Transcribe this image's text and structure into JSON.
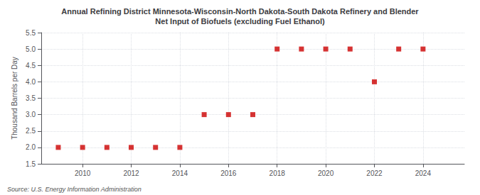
{
  "chart_data": {
    "type": "scatter",
    "title": "Annual Refining District Minnesota-Wisconsin-North Dakota-South Dakota Refinery and Blender\nNet Input of Biofuels (excluding Fuel Ethanol)",
    "ylabel": "Thousand Barrels per Day",
    "source": "Source: U.S. Energy Information Administration",
    "x": [
      2009,
      2010,
      2011,
      2012,
      2013,
      2014,
      2015,
      2016,
      2017,
      2018,
      2019,
      2020,
      2021,
      2022,
      2023,
      2024
    ],
    "values": [
      2.0,
      2.0,
      2.0,
      2.0,
      2.0,
      2.0,
      3.0,
      3.0,
      3.0,
      5.0,
      5.0,
      5.0,
      5.0,
      4.0,
      5.0,
      5.0
    ],
    "color": "#cc0000",
    "marker": "square",
    "xlim": [
      2008.3,
      2025.7
    ],
    "xticks": [
      2010,
      2012,
      2014,
      2016,
      2018,
      2020,
      2022,
      2024
    ],
    "ylim": [
      1.5,
      5.5
    ],
    "yticks": [
      1.5,
      {
        "value": 2,
        "label": "2.0"
      },
      2.5,
      {
        "value": 3,
        "label": "3.0"
      },
      3.5,
      {
        "value": 4,
        "label": "4.0"
      },
      4.5,
      {
        "value": 5,
        "label": "5.0"
      },
      5.5
    ],
    "grid": true
  }
}
